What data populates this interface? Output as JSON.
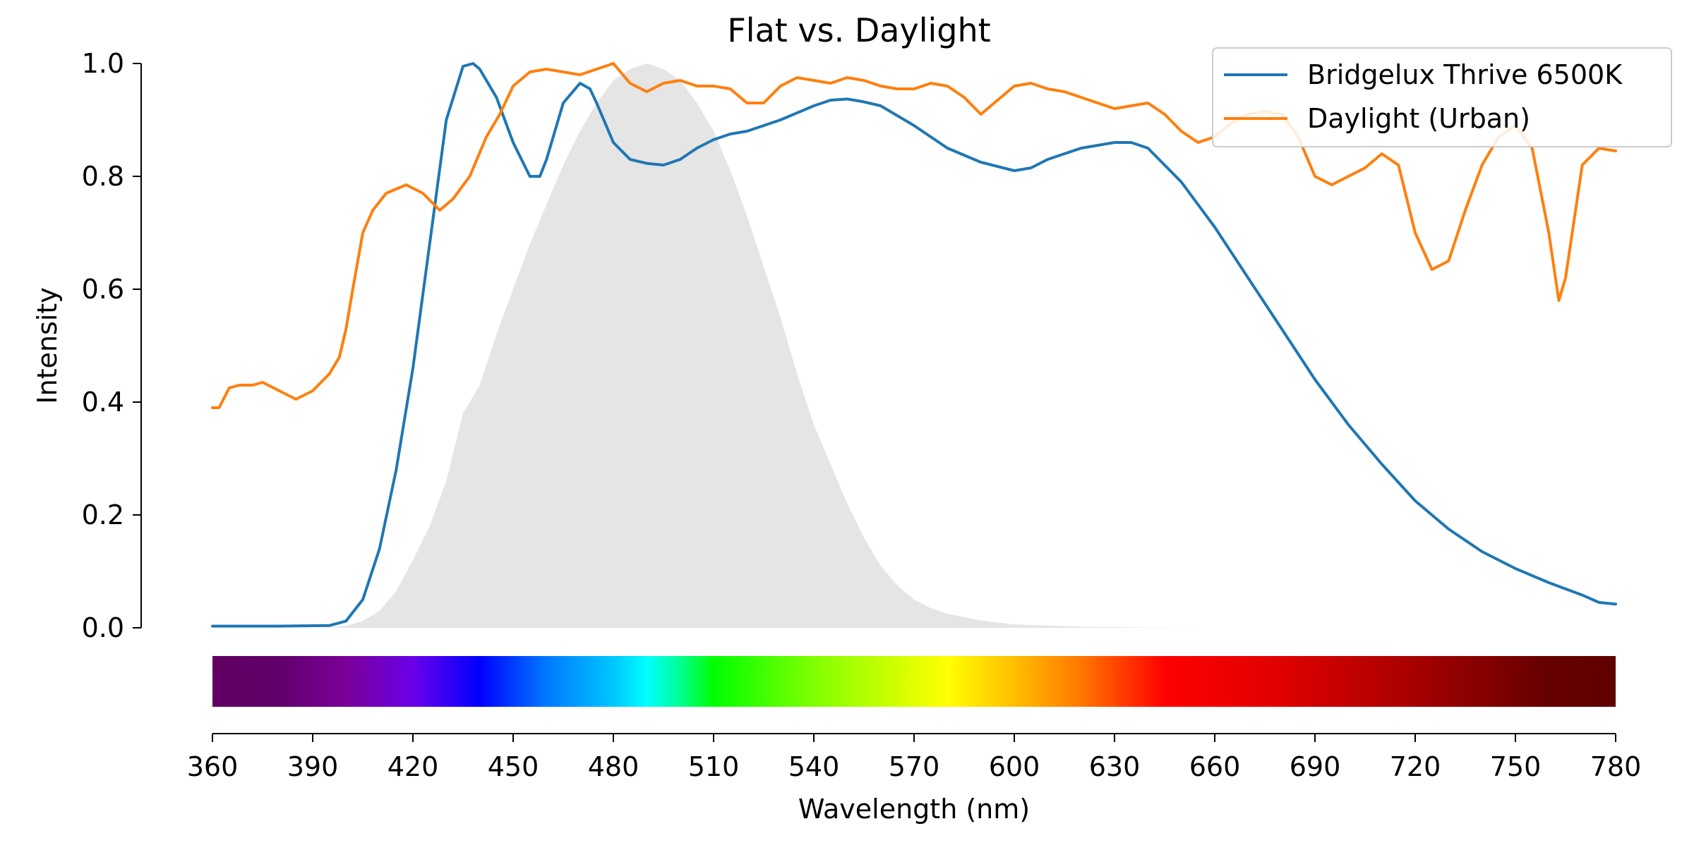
{
  "chart_data": {
    "type": "line",
    "title": "Flat vs. Daylight",
    "xlabel": "Wavelength (nm)",
    "ylabel": "Intensity",
    "xlim": [
      360,
      780
    ],
    "ylim": [
      0,
      1
    ],
    "xticks": [
      "360",
      "390",
      "420",
      "450",
      "480",
      "510",
      "540",
      "570",
      "600",
      "630",
      "660",
      "690",
      "720",
      "750",
      "780"
    ],
    "yticks": [
      "0.0",
      "0.2",
      "0.4",
      "0.6",
      "0.8",
      "1.0"
    ],
    "grid": false,
    "legend_position": "top-right",
    "series": [
      {
        "name": "Bridgelux Thrive 6500K",
        "color": "#1f77b4",
        "x": [
          360,
          380,
          395,
          400,
          405,
          410,
          415,
          420,
          425,
          430,
          435,
          438,
          440,
          445,
          450,
          455,
          458,
          460,
          465,
          470,
          473,
          475,
          480,
          485,
          490,
          495,
          500,
          505,
          510,
          515,
          520,
          530,
          540,
          545,
          550,
          555,
          560,
          570,
          580,
          590,
          600,
          605,
          610,
          620,
          630,
          635,
          640,
          645,
          650,
          655,
          660,
          670,
          680,
          690,
          700,
          710,
          720,
          730,
          740,
          750,
          760,
          770,
          775,
          780
        ],
        "y": [
          0.003,
          0.003,
          0.004,
          0.012,
          0.05,
          0.14,
          0.28,
          0.46,
          0.68,
          0.9,
          0.995,
          1.0,
          0.99,
          0.94,
          0.86,
          0.8,
          0.8,
          0.83,
          0.93,
          0.965,
          0.955,
          0.93,
          0.86,
          0.83,
          0.823,
          0.82,
          0.83,
          0.85,
          0.865,
          0.875,
          0.88,
          0.9,
          0.925,
          0.935,
          0.937,
          0.932,
          0.925,
          0.89,
          0.85,
          0.825,
          0.81,
          0.815,
          0.83,
          0.85,
          0.86,
          0.86,
          0.85,
          0.82,
          0.79,
          0.75,
          0.71,
          0.62,
          0.53,
          0.44,
          0.36,
          0.29,
          0.225,
          0.175,
          0.135,
          0.105,
          0.08,
          0.058,
          0.045,
          0.042
        ]
      },
      {
        "name": "Daylight (Urban)",
        "color": "#ff7f0e",
        "x": [
          360,
          362,
          365,
          368,
          372,
          375,
          380,
          385,
          390,
          395,
          398,
          400,
          402,
          405,
          408,
          412,
          418,
          423,
          428,
          432,
          437,
          442,
          446,
          450,
          455,
          460,
          465,
          470,
          475,
          480,
          485,
          490,
          495,
          500,
          505,
          510,
          515,
          520,
          525,
          530,
          535,
          540,
          545,
          550,
          555,
          560,
          565,
          570,
          575,
          580,
          585,
          590,
          595,
          600,
          605,
          610,
          615,
          620,
          625,
          630,
          635,
          640,
          645,
          650,
          655,
          660,
          665,
          670,
          675,
          680,
          685,
          690,
          695,
          700,
          705,
          710,
          715,
          720,
          725,
          730,
          735,
          740,
          745,
          750,
          755,
          760,
          763,
          765,
          770,
          775,
          780
        ],
        "y": [
          0.39,
          0.39,
          0.425,
          0.43,
          0.43,
          0.435,
          0.42,
          0.405,
          0.42,
          0.45,
          0.48,
          0.53,
          0.6,
          0.7,
          0.74,
          0.77,
          0.785,
          0.77,
          0.74,
          0.76,
          0.8,
          0.87,
          0.91,
          0.96,
          0.985,
          0.99,
          0.985,
          0.98,
          0.99,
          1.0,
          0.965,
          0.95,
          0.965,
          0.97,
          0.96,
          0.96,
          0.955,
          0.93,
          0.93,
          0.96,
          0.975,
          0.97,
          0.965,
          0.975,
          0.97,
          0.96,
          0.955,
          0.955,
          0.965,
          0.96,
          0.94,
          0.91,
          0.935,
          0.96,
          0.965,
          0.955,
          0.95,
          0.94,
          0.93,
          0.92,
          0.925,
          0.93,
          0.91,
          0.88,
          0.86,
          0.87,
          0.895,
          0.91,
          0.915,
          0.91,
          0.87,
          0.8,
          0.785,
          0.8,
          0.815,
          0.84,
          0.82,
          0.7,
          0.635,
          0.65,
          0.74,
          0.82,
          0.87,
          0.89,
          0.85,
          0.7,
          0.58,
          0.62,
          0.82,
          0.85,
          0.845
        ]
      }
    ],
    "luminosity_fill": {
      "color": "#e5e5e5",
      "x": [
        360,
        390,
        395,
        400,
        405,
        410,
        415,
        420,
        425,
        430,
        435,
        440,
        445,
        450,
        455,
        460,
        465,
        470,
        475,
        480,
        485,
        490,
        495,
        500,
        505,
        510,
        515,
        520,
        525,
        530,
        535,
        540,
        545,
        550,
        555,
        560,
        565,
        570,
        575,
        580,
        590,
        600,
        620,
        640,
        660,
        780
      ],
      "y": [
        0.0,
        0.0,
        0.001,
        0.003,
        0.012,
        0.03,
        0.065,
        0.12,
        0.18,
        0.26,
        0.38,
        0.43,
        0.52,
        0.6,
        0.68,
        0.75,
        0.82,
        0.88,
        0.93,
        0.97,
        0.99,
        1.0,
        0.99,
        0.97,
        0.93,
        0.88,
        0.81,
        0.73,
        0.64,
        0.55,
        0.45,
        0.36,
        0.29,
        0.22,
        0.16,
        0.11,
        0.075,
        0.05,
        0.035,
        0.025,
        0.013,
        0.006,
        0.002,
        0.0005,
        0.0,
        0.0
      ]
    },
    "spectrum_bar": {
      "stops": [
        {
          "wl": 360,
          "color": "#610061"
        },
        {
          "wl": 380,
          "color": "#61006b"
        },
        {
          "wl": 400,
          "color": "#7a0099"
        },
        {
          "wl": 420,
          "color": "#6a00e8"
        },
        {
          "wl": 440,
          "color": "#0000ff"
        },
        {
          "wl": 460,
          "color": "#0079ff"
        },
        {
          "wl": 480,
          "color": "#00c6ff"
        },
        {
          "wl": 490,
          "color": "#00ffff"
        },
        {
          "wl": 500,
          "color": "#00ff92"
        },
        {
          "wl": 510,
          "color": "#00ff00"
        },
        {
          "wl": 540,
          "color": "#81ff00"
        },
        {
          "wl": 570,
          "color": "#e1ff00"
        },
        {
          "wl": 580,
          "color": "#ffff00"
        },
        {
          "wl": 600,
          "color": "#ffbe00"
        },
        {
          "wl": 620,
          "color": "#ff7700"
        },
        {
          "wl": 645,
          "color": "#ff0000"
        },
        {
          "wl": 680,
          "color": "#e00000"
        },
        {
          "wl": 720,
          "color": "#a60000"
        },
        {
          "wl": 760,
          "color": "#650000"
        },
        {
          "wl": 780,
          "color": "#610000"
        }
      ]
    }
  }
}
